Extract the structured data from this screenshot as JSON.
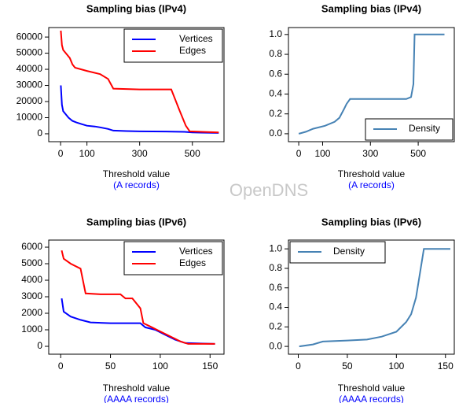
{
  "watermark": "OpenDNS",
  "chart_data": [
    {
      "type": "line",
      "title": "Sampling bias (IPv4)",
      "xlabel": "Threshold value",
      "xlabel_note": "(A records)",
      "xlim": [
        -45,
        620
      ],
      "ylim": [
        -4900,
        65900
      ],
      "xticks": [
        0,
        100,
        300,
        500
      ],
      "yticks": [
        0,
        10000,
        20000,
        30000,
        40000,
        50000,
        60000
      ],
      "legend": "topright",
      "series": [
        {
          "name": "Vertices",
          "color": "#0000ff",
          "x": [
            1,
            5,
            10,
            20,
            30,
            45,
            60,
            80,
            100,
            130,
            150,
            180,
            200,
            250,
            300,
            400,
            470,
            500,
            600
          ],
          "values": [
            30000,
            18000,
            14000,
            12000,
            10000,
            8000,
            7000,
            6000,
            5000,
            4500,
            4000,
            3000,
            2000,
            1700,
            1500,
            1400,
            1200,
            800,
            500
          ]
        },
        {
          "name": "Edges",
          "color": "#ff0000",
          "x": [
            1,
            5,
            10,
            20,
            35,
            45,
            55,
            100,
            150,
            180,
            200,
            300,
            420,
            450,
            475,
            490,
            600
          ],
          "values": [
            64000,
            55000,
            52000,
            50000,
            47000,
            43000,
            41000,
            39000,
            37000,
            34000,
            28000,
            27500,
            27500,
            15000,
            5000,
            1500,
            800
          ]
        }
      ]
    },
    {
      "type": "line",
      "title": "Sampling bias (IPv4)",
      "xlabel": "Threshold value",
      "xlabel_note": "(A records)",
      "xlim": [
        -43,
        651
      ],
      "ylim": [
        -0.08,
        1.07
      ],
      "xticks": [
        0,
        100,
        300,
        500
      ],
      "yticks": [
        {
          "value": 0,
          "label": "0.0"
        },
        0.2,
        0.4,
        0.6,
        0.8,
        {
          "value": 1,
          "label": "1.0"
        }
      ],
      "legend": "bottomright",
      "series": [
        {
          "name": "Density",
          "color": "#4682b4",
          "x": [
            0,
            30,
            60,
            110,
            150,
            170,
            190,
            200,
            215,
            450,
            470,
            480,
            485,
            610
          ],
          "values": [
            0,
            0.02,
            0.05,
            0.08,
            0.12,
            0.16,
            0.25,
            0.3,
            0.35,
            0.35,
            0.37,
            0.5,
            1,
            1
          ]
        }
      ]
    },
    {
      "type": "line",
      "title": "Sampling bias (IPv6)",
      "xlabel": "Threshold value",
      "xlabel_note": "(AAAA records)",
      "xlim": [
        -12,
        164
      ],
      "ylim": [
        -476,
        6430
      ],
      "xticks": [
        0,
        50,
        100,
        150
      ],
      "yticks": [
        0,
        1000,
        2000,
        3000,
        4000,
        5000,
        6000
      ],
      "legend": "topright",
      "series": [
        {
          "name": "Vertices",
          "color": "#0000ff",
          "x": [
            1,
            3,
            10,
            20,
            30,
            50,
            80,
            85,
            95,
            105,
            115,
            125,
            155
          ],
          "values": [
            2900,
            2100,
            1800,
            1600,
            1450,
            1400,
            1400,
            1150,
            1000,
            700,
            400,
            200,
            150
          ]
        },
        {
          "name": "Edges",
          "color": "#ff0000",
          "x": [
            1,
            3,
            10,
            20,
            25,
            40,
            60,
            65,
            72,
            80,
            83,
            90,
            100,
            110,
            120,
            128,
            155
          ],
          "values": [
            5800,
            5300,
            5000,
            4700,
            3200,
            3150,
            3150,
            2900,
            2900,
            2300,
            1400,
            1200,
            900,
            600,
            300,
            150,
            150
          ]
        }
      ]
    },
    {
      "type": "line",
      "title": "Sampling bias (IPv6)",
      "xlabel": "Threshold value",
      "xlabel_note": "(AAAA records)",
      "xlim": [
        -10,
        159
      ],
      "ylim": [
        -0.08,
        1.09
      ],
      "xticks": [
        0,
        50,
        100,
        150
      ],
      "yticks": [
        {
          "value": 0,
          "label": "0.0"
        },
        0.2,
        0.4,
        0.6,
        0.8,
        {
          "value": 1,
          "label": "1.0"
        }
      ],
      "legend": "topleft",
      "series": [
        {
          "name": "Density",
          "color": "#4682b4",
          "x": [
            1,
            15,
            25,
            50,
            70,
            85,
            100,
            110,
            115,
            120,
            128,
            155
          ],
          "values": [
            0,
            0.02,
            0.05,
            0.06,
            0.07,
            0.1,
            0.15,
            0.25,
            0.33,
            0.5,
            1,
            1
          ]
        }
      ]
    }
  ]
}
